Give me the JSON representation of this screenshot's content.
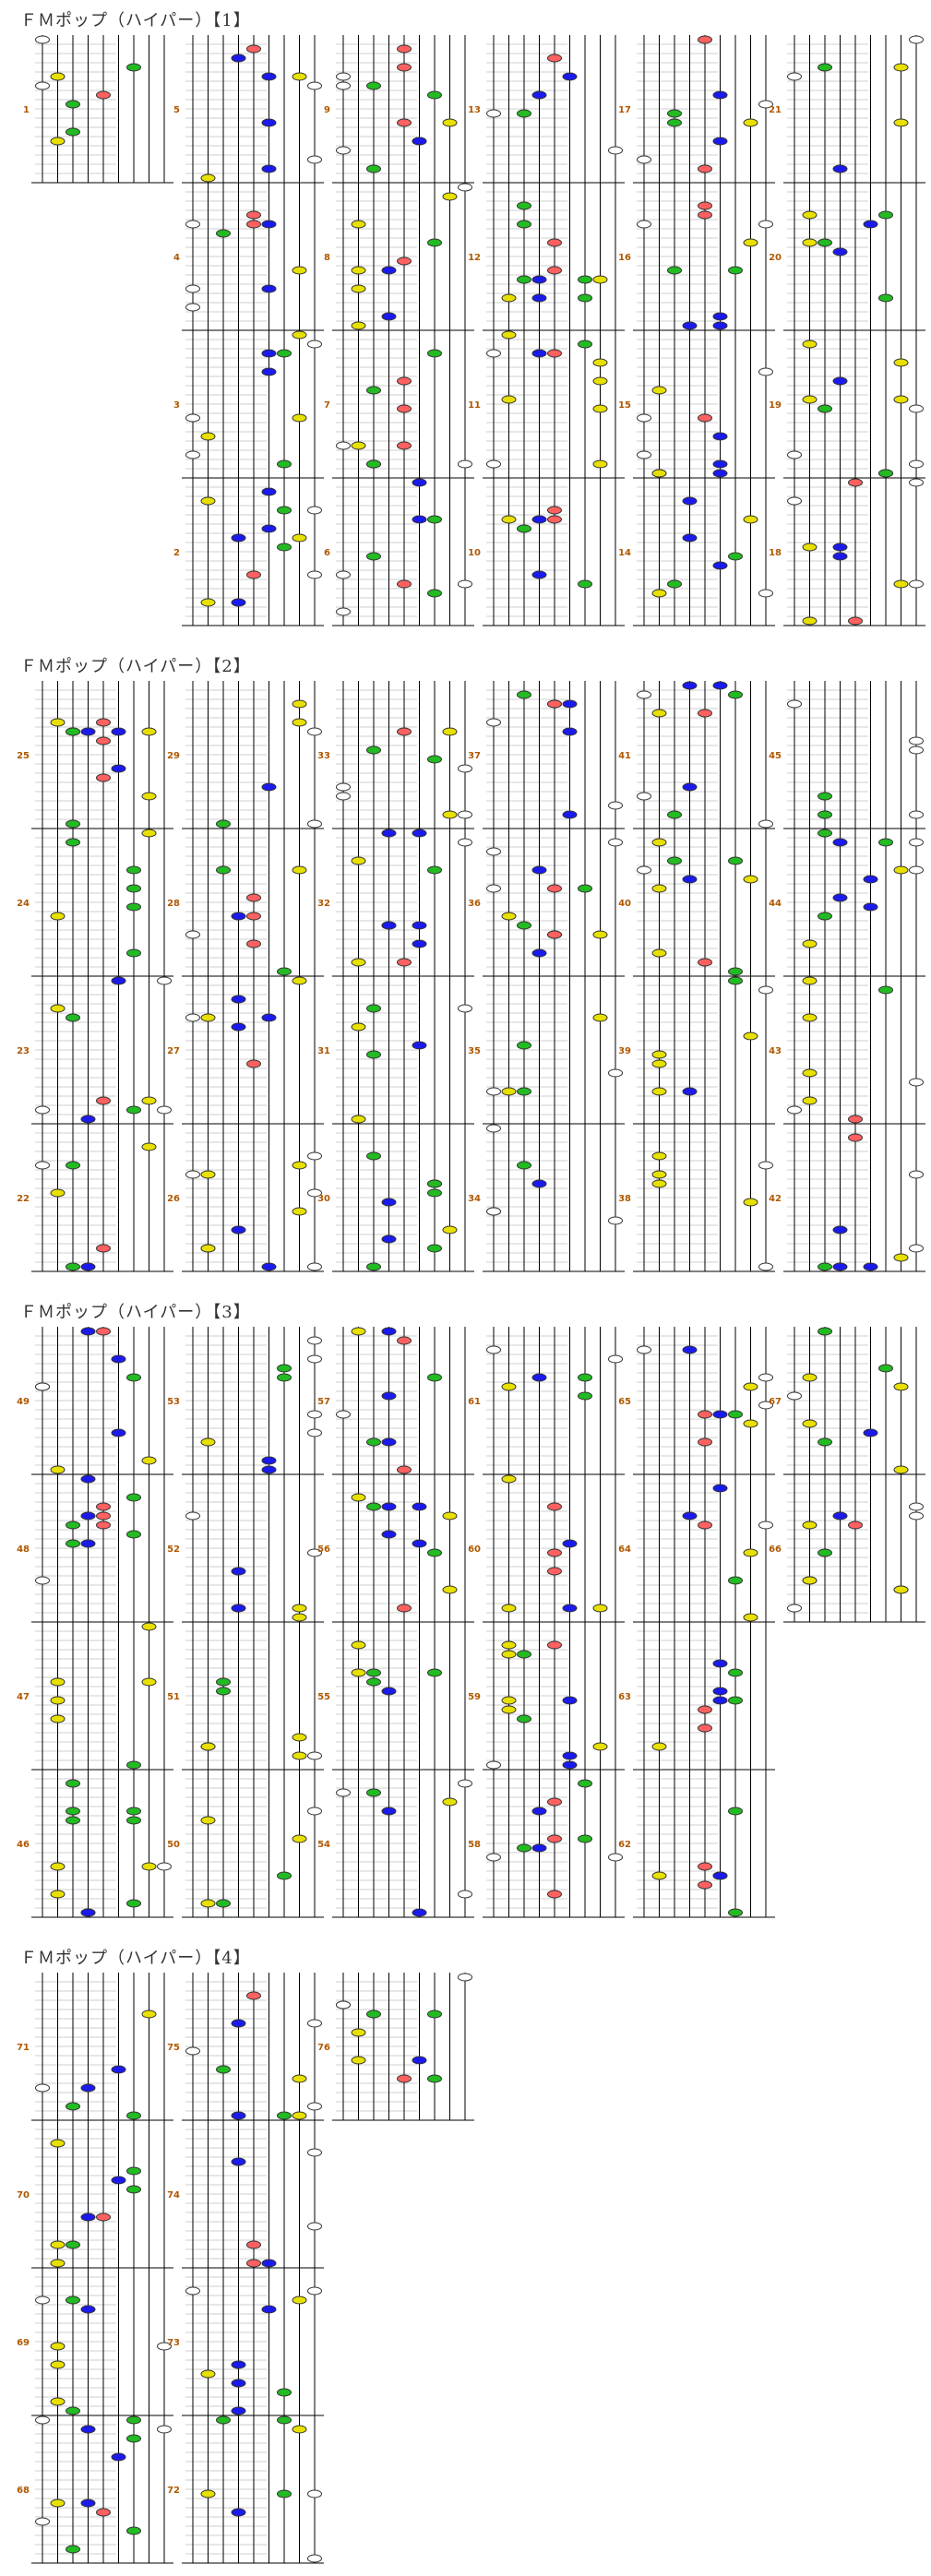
{
  "sections": [
    {
      "title": "ＦＭポップ（ハイパー）【1】"
    },
    {
      "title": "ＦＭポップ（ハイパー）【2】"
    },
    {
      "title": "ＦＭポップ（ハイパー）【3】"
    },
    {
      "title": "ＦＭポップ（ハイパー）【4】"
    }
  ],
  "colors": {
    "white": "#ffffff",
    "yellow": "#e8e000",
    "green": "#22bb22",
    "blue": "#1a1aee",
    "red": "#ff6060",
    "measure_label": "#b05800",
    "line": "#000000",
    "beat_line": "#cfcfcf"
  },
  "columns": [
    {
      "section": 0,
      "measures": [
        1
      ]
    },
    {
      "section": 0,
      "measures": [
        5,
        4,
        3,
        2
      ]
    },
    {
      "section": 0,
      "measures": [
        9,
        8,
        7,
        6
      ]
    },
    {
      "section": 0,
      "measures": [
        13,
        12,
        11,
        10
      ]
    },
    {
      "section": 0,
      "measures": [
        17,
        16,
        15,
        14
      ]
    },
    {
      "section": 0,
      "measures": [
        21,
        20,
        19,
        18
      ]
    },
    {
      "section": 1,
      "measures": [
        25,
        24,
        23,
        22
      ]
    },
    {
      "section": 1,
      "measures": [
        29,
        28,
        27,
        26
      ]
    },
    {
      "section": 1,
      "measures": [
        33,
        32,
        31,
        30
      ]
    },
    {
      "section": 1,
      "measures": [
        37,
        36,
        35,
        34
      ]
    },
    {
      "section": 1,
      "measures": [
        41,
        40,
        39,
        38
      ]
    },
    {
      "section": 1,
      "measures": [
        45,
        44,
        43,
        42
      ]
    },
    {
      "section": 2,
      "measures": [
        49,
        48,
        47,
        46
      ]
    },
    {
      "section": 2,
      "measures": [
        53,
        52,
        51,
        50
      ]
    },
    {
      "section": 2,
      "measures": [
        57,
        56,
        55,
        54
      ]
    },
    {
      "section": 2,
      "measures": [
        61,
        60,
        59,
        58
      ]
    },
    {
      "section": 2,
      "measures": [
        65,
        64,
        63,
        62
      ]
    },
    {
      "section": 2,
      "measures": [
        67,
        66
      ]
    },
    {
      "section": 3,
      "measures": [
        71,
        70,
        69,
        68
      ]
    },
    {
      "section": 3,
      "measures": [
        75,
        74,
        73,
        72
      ]
    },
    {
      "section": 3,
      "measures": [
        76
      ]
    }
  ]
}
